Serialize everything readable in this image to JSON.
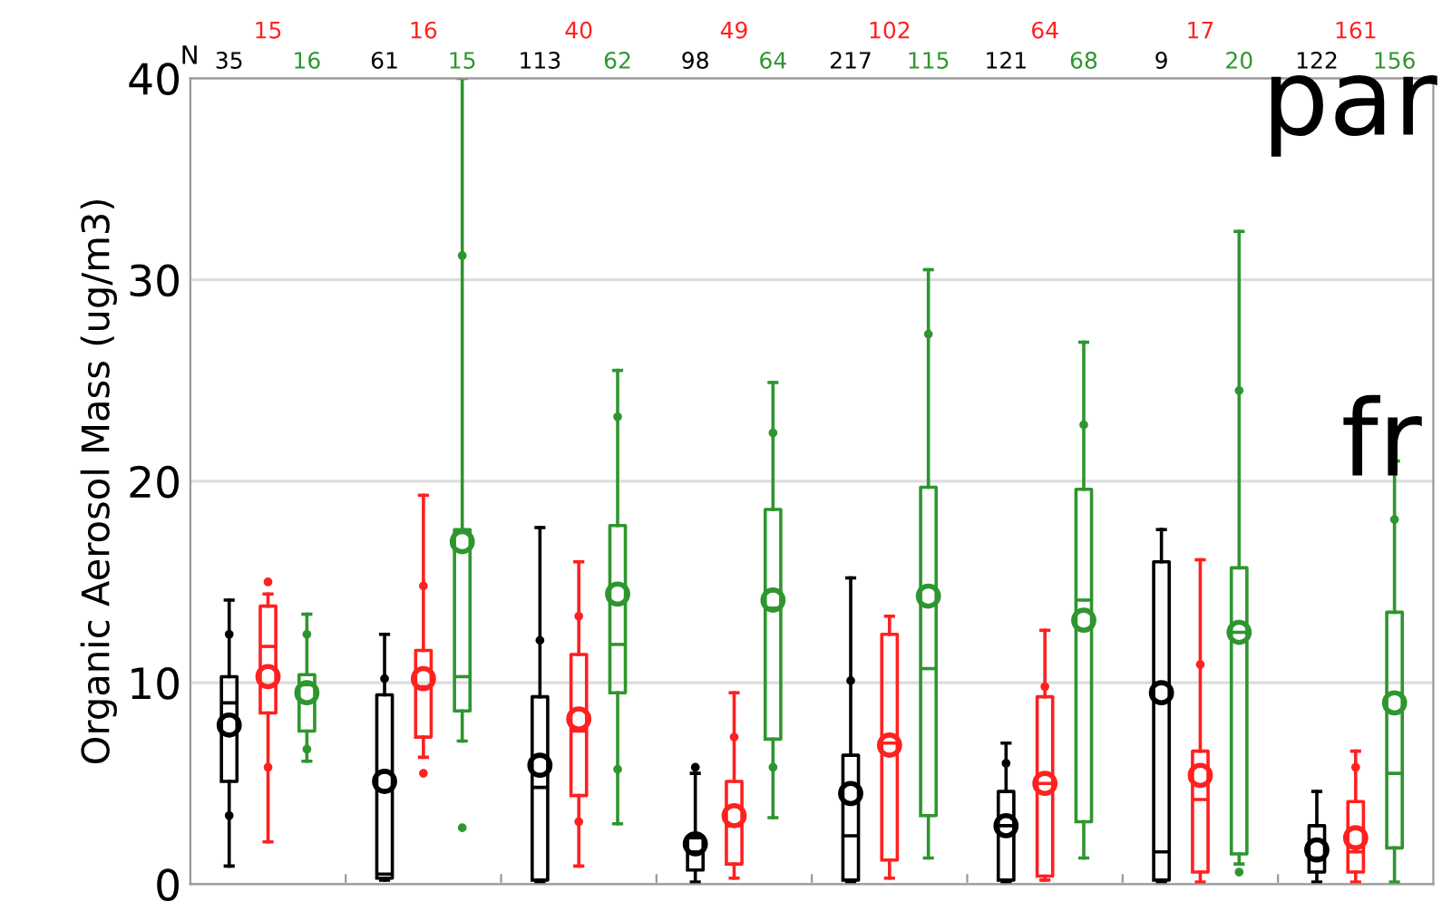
{
  "chart_data": {
    "type": "box",
    "ylabel": "Organic Aerosol Mass (ug/m3)",
    "categories": [
      null,
      null,
      null,
      null,
      null,
      null,
      null,
      null
    ],
    "ylim": [
      0,
      40
    ],
    "yticks": [
      0,
      10,
      20,
      30,
      40
    ],
    "grid": "y",
    "annotations": [
      "N",
      "par",
      "fr"
    ],
    "series": [
      {
        "color": "#000000",
        "value_labels": [
          "35",
          "61",
          "113",
          "98",
          "217",
          "121",
          "9",
          "122"
        ],
        "boxes": [
          {
            "low": 0.9,
            "q1": 5.1,
            "median": 9.0,
            "q3": 10.3,
            "high": 14.1,
            "mean": 7.9,
            "outliers": [
              12.4,
              3.4
            ]
          },
          {
            "low": 0.2,
            "q1": 0.3,
            "median": 0.5,
            "q3": 9.4,
            "high": 12.4,
            "mean": 5.1,
            "outliers": [
              10.2
            ]
          },
          {
            "low": 0.1,
            "q1": 0.2,
            "median": 4.8,
            "q3": 9.3,
            "high": 17.7,
            "mean": 5.9,
            "outliers": [
              12.1
            ]
          },
          {
            "low": 0.1,
            "q1": 0.7,
            "median": 1.6,
            "q3": 2.3,
            "high": 5.5,
            "mean": 2.0,
            "outliers": [
              5.8
            ]
          },
          {
            "low": 0.1,
            "q1": 0.2,
            "median": 2.4,
            "q3": 6.4,
            "high": 15.2,
            "mean": 4.5,
            "outliers": [
              10.1
            ]
          },
          {
            "low": 0.1,
            "q1": 0.2,
            "median": 2.9,
            "q3": 4.6,
            "high": 7.0,
            "mean": 2.9,
            "outliers": [
              6.0
            ]
          },
          {
            "low": 0.1,
            "q1": 0.2,
            "median": 1.6,
            "q3": 16.0,
            "high": 17.6,
            "mean": 9.5
          },
          {
            "low": 0.1,
            "q1": 0.6,
            "median": 1.3,
            "q3": 2.9,
            "high": 4.6,
            "mean": 1.7
          }
        ]
      },
      {
        "color": "#ff2020",
        "value_labels": [
          "15",
          "16",
          "40",
          "49",
          "102",
          "64",
          "17",
          "161"
        ],
        "boxes": [
          {
            "low": 2.1,
            "q1": 8.5,
            "median": 11.8,
            "q3": 13.8,
            "high": 14.4,
            "mean": 10.3,
            "outliers": [
              15.0,
              5.8
            ]
          },
          {
            "low": 6.3,
            "q1": 7.3,
            "median": 9.8,
            "q3": 11.6,
            "high": 19.3,
            "mean": 10.2,
            "outliers": [
              14.8,
              5.5
            ]
          },
          {
            "low": 0.9,
            "q1": 4.4,
            "median": 7.6,
            "q3": 11.4,
            "high": 16.0,
            "mean": 8.2,
            "outliers": [
              13.3,
              3.1
            ]
          },
          {
            "low": 0.3,
            "q1": 1.0,
            "median": 2.9,
            "q3": 5.1,
            "high": 9.5,
            "mean": 3.4,
            "outliers": [
              7.3
            ]
          },
          {
            "low": 0.3,
            "q1": 1.2,
            "median": 7.0,
            "q3": 12.4,
            "high": 13.3,
            "mean": 6.9
          },
          {
            "low": 0.2,
            "q1": 0.4,
            "median": 5.0,
            "q3": 9.3,
            "high": 12.6,
            "mean": 5.0,
            "outliers": [
              9.8
            ]
          },
          {
            "low": 0.1,
            "q1": 0.6,
            "median": 4.2,
            "q3": 6.6,
            "high": 16.1,
            "mean": 5.4,
            "outliers": [
              10.9
            ]
          },
          {
            "low": 0.1,
            "q1": 0.6,
            "median": 1.6,
            "q3": 4.1,
            "high": 6.6,
            "mean": 2.3,
            "outliers": [
              5.8
            ]
          }
        ]
      },
      {
        "color": "#2e962e",
        "value_labels": [
          "16",
          "15",
          "62",
          "64",
          "115",
          "68",
          "20",
          "156"
        ],
        "boxes": [
          {
            "low": 6.1,
            "q1": 7.6,
            "median": 9.9,
            "q3": 10.4,
            "high": 13.4,
            "mean": 9.5,
            "outliers": [
              12.4,
              6.7
            ]
          },
          {
            "low": 7.1,
            "q1": 8.6,
            "median": 10.3,
            "q3": 17.6,
            "high": 40,
            "mean": 17.0,
            "outliers": [
              31.2,
              2.8
            ]
          },
          {
            "low": 3.0,
            "q1": 9.5,
            "median": 11.9,
            "q3": 17.8,
            "high": 25.5,
            "mean": 14.4,
            "outliers": [
              23.2,
              5.7
            ]
          },
          {
            "low": 3.3,
            "q1": 7.2,
            "median": 13.7,
            "q3": 18.6,
            "high": 24.9,
            "mean": 14.1,
            "outliers": [
              22.4,
              5.8
            ]
          },
          {
            "low": 1.3,
            "q1": 3.4,
            "median": 10.7,
            "q3": 19.7,
            "high": 30.5,
            "mean": 14.3,
            "outliers": [
              27.3
            ]
          },
          {
            "low": 1.3,
            "q1": 3.1,
            "median": 14.1,
            "q3": 19.6,
            "high": 26.9,
            "mean": 13.1,
            "outliers": [
              22.8
            ]
          },
          {
            "low": 1.0,
            "q1": 1.5,
            "median": 12.5,
            "q3": 15.7,
            "high": 32.4,
            "mean": 12.5,
            "outliers": [
              24.5,
              0.6
            ]
          },
          {
            "low": 0.1,
            "q1": 1.8,
            "median": 5.5,
            "q3": 13.5,
            "high": 21,
            "mean": 9.0,
            "outliers": [
              18.1
            ]
          }
        ]
      }
    ]
  }
}
